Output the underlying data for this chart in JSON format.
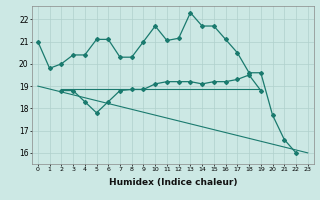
{
  "bg_color": "#cce8e4",
  "grid_color": "#b0d0cc",
  "line_color": "#1a7a6e",
  "xlabel": "Humidex (Indice chaleur)",
  "ylim": [
    15.5,
    22.6
  ],
  "xlim": [
    -0.5,
    23.5
  ],
  "yticks": [
    16,
    17,
    18,
    19,
    20,
    21,
    22
  ],
  "xticks": [
    0,
    1,
    2,
    3,
    4,
    5,
    6,
    7,
    8,
    9,
    10,
    11,
    12,
    13,
    14,
    15,
    16,
    17,
    18,
    19,
    20,
    21,
    22,
    23
  ],
  "line1_x": [
    0,
    1,
    2,
    3,
    4,
    5,
    6,
    7,
    8,
    9,
    10,
    11,
    12,
    13,
    14,
    15,
    16,
    17,
    18,
    19,
    20,
    21,
    22
  ],
  "line1_y": [
    21.0,
    19.8,
    20.0,
    20.4,
    20.4,
    21.1,
    21.1,
    20.3,
    20.3,
    21.0,
    21.7,
    21.05,
    21.15,
    22.3,
    21.7,
    21.7,
    21.1,
    20.5,
    19.6,
    19.6,
    17.7,
    16.6,
    16.0
  ],
  "line2_x": [
    2,
    3,
    4,
    5,
    6,
    7,
    8,
    9,
    10,
    11,
    12,
    13,
    14,
    15,
    16,
    17,
    18,
    19
  ],
  "line2_y": [
    18.8,
    18.8,
    18.3,
    17.8,
    18.3,
    18.8,
    18.85,
    18.85,
    19.1,
    19.2,
    19.2,
    19.2,
    19.1,
    19.2,
    19.2,
    19.3,
    19.5,
    18.8
  ],
  "line3_x": [
    2,
    19
  ],
  "line3_y": [
    18.85,
    18.85
  ],
  "line4_x": [
    0,
    23
  ],
  "line4_y": [
    19.0,
    16.0
  ]
}
